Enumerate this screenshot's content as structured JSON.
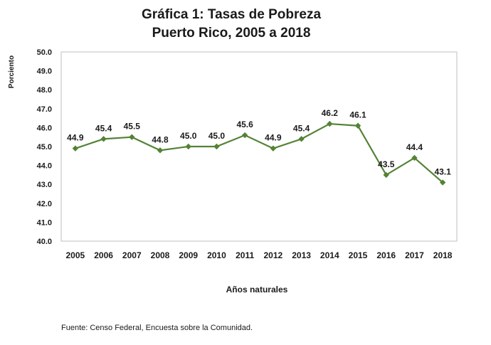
{
  "chart_data": {
    "type": "line",
    "title": "Gráfica 1: Tasas de Pobreza",
    "subtitle": "Puerto Rico, 2005 a 2018",
    "xlabel": "Años naturales",
    "ylabel": "Porciento",
    "categories": [
      "2005",
      "2006",
      "2007",
      "2008",
      "2009",
      "2010",
      "2011",
      "2012",
      "2013",
      "2014",
      "2015",
      "2016",
      "2017",
      "2018"
    ],
    "series": [
      {
        "values": [
          44.9,
          45.4,
          45.5,
          44.8,
          45.0,
          45.0,
          45.6,
          44.9,
          45.4,
          46.2,
          46.1,
          43.5,
          44.4,
          43.1
        ]
      }
    ],
    "data_labels": [
      "44.9",
      "45.4",
      "45.5",
      "44.8",
      "45.0",
      "45.0",
      "45.6",
      "44.9",
      "45.4",
      "46.2",
      "46.1",
      "43.5",
      "44.4",
      "43.1"
    ],
    "ylim": [
      40.0,
      50.0
    ],
    "yticks": [
      "40.0",
      "41.0",
      "42.0",
      "43.0",
      "44.0",
      "45.0",
      "46.0",
      "47.0",
      "48.0",
      "49.0",
      "50.0"
    ],
    "grid": false,
    "legend": "none",
    "colors": {
      "line": "#548235",
      "marker": "#548235",
      "plot_border": "#bfbfbf"
    }
  },
  "source_note": "Fuente: Censo Federal, Encuesta sobre la Comunidad."
}
